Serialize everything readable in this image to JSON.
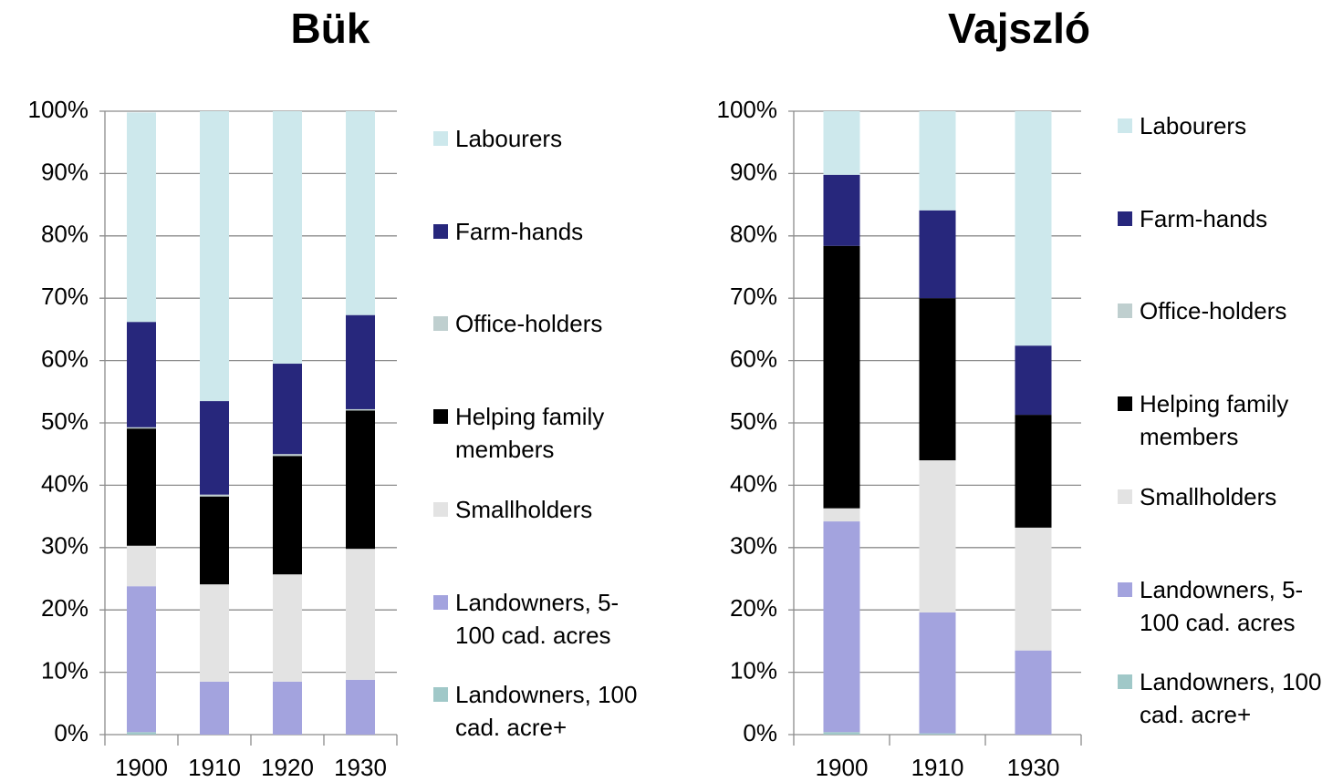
{
  "chart_data": [
    {
      "type": "bar",
      "stacked": true,
      "title": "Bük",
      "categories": [
        "1900",
        "1910",
        "1920",
        "1930"
      ],
      "ylim": [
        0,
        100
      ],
      "yticks": [
        {
          "value": 0,
          "label": "0%"
        },
        {
          "value": 10,
          "label": "10%"
        },
        {
          "value": 20,
          "label": "20%"
        },
        {
          "value": 30,
          "label": "30%"
        },
        {
          "value": 40,
          "label": "40%"
        },
        {
          "value": 50,
          "label": "50%"
        },
        {
          "value": 60,
          "label": "60%"
        },
        {
          "value": 70,
          "label": "70%"
        },
        {
          "value": 80,
          "label": "80%"
        },
        {
          "value": 90,
          "label": "90%"
        },
        {
          "value": 100,
          "label": "100%"
        }
      ],
      "grid": true,
      "legend": "right",
      "series": [
        {
          "name": "Landowners, 100 cad. acre+",
          "color": "#a0c8c8",
          "values": [
            0.4,
            0,
            0,
            0
          ]
        },
        {
          "name": "Landowners, 5-100 cad. acres",
          "color": "#a3a3de",
          "values": [
            23.4,
            8.5,
            8.5,
            8.8
          ]
        },
        {
          "name": "Smallholders",
          "color": "#e3e3e3",
          "values": [
            6.5,
            15.6,
            17.2,
            21.0
          ]
        },
        {
          "name": "Helping family members",
          "color": "#000000",
          "values": [
            18.8,
            14.1,
            19.0,
            22.2
          ]
        },
        {
          "name": "Office-holders",
          "color": "#bfcfcf",
          "values": [
            0.2,
            0.3,
            0.3,
            0.2
          ]
        },
        {
          "name": "Farm-hands",
          "color": "#27277c",
          "values": [
            16.9,
            15.0,
            14.5,
            15.1
          ]
        },
        {
          "name": "Labourers",
          "color": "#cde8ec",
          "values": [
            33.6,
            46.5,
            40.5,
            32.7
          ]
        }
      ]
    },
    {
      "type": "bar",
      "stacked": true,
      "title": "Vajszló",
      "categories": [
        "1900",
        "1910",
        "1930"
      ],
      "ylim": [
        0,
        100
      ],
      "yticks": [
        {
          "value": 0,
          "label": "0%"
        },
        {
          "value": 10,
          "label": "10%"
        },
        {
          "value": 20,
          "label": "20%"
        },
        {
          "value": 30,
          "label": "30%"
        },
        {
          "value": 40,
          "label": "40%"
        },
        {
          "value": 50,
          "label": "50%"
        },
        {
          "value": 60,
          "label": "60%"
        },
        {
          "value": 70,
          "label": "70%"
        },
        {
          "value": 80,
          "label": "80%"
        },
        {
          "value": 90,
          "label": "90%"
        },
        {
          "value": 100,
          "label": "100%"
        }
      ],
      "grid": true,
      "legend": "right",
      "series": [
        {
          "name": "Landowners, 100 cad. acre+",
          "color": "#a0c8c8",
          "values": [
            0.4,
            0.2,
            0
          ]
        },
        {
          "name": "Landowners, 5-100 cad. acres",
          "color": "#a3a3de",
          "values": [
            33.8,
            19.4,
            13.5
          ]
        },
        {
          "name": "Smallholders",
          "color": "#e3e3e3",
          "values": [
            2.1,
            24.4,
            19.7
          ]
        },
        {
          "name": "Helping family members",
          "color": "#000000",
          "values": [
            42.1,
            26.0,
            18.1
          ]
        },
        {
          "name": "Office-holders",
          "color": "#bfcfcf",
          "values": [
            0,
            0,
            0
          ]
        },
        {
          "name": "Farm-hands",
          "color": "#27277c",
          "values": [
            11.4,
            14.1,
            11.1
          ]
        },
        {
          "name": "Labourers",
          "color": "#cde8ec",
          "values": [
            10.2,
            15.9,
            37.6
          ]
        }
      ]
    }
  ]
}
